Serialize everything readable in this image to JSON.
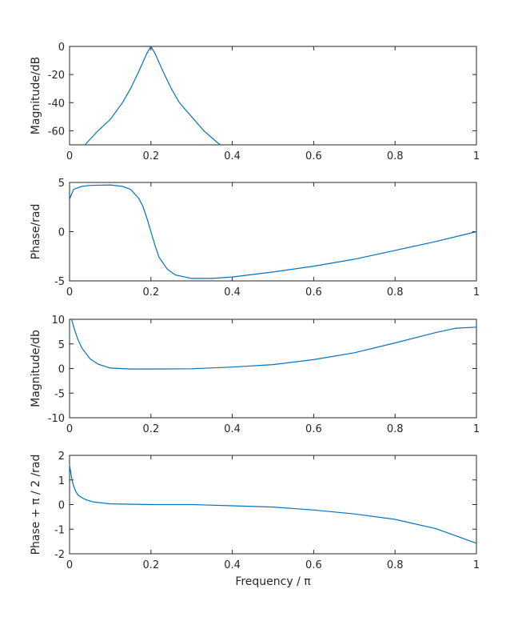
{
  "chart_data": [
    {
      "type": "line",
      "ylabel": "Magnitude/dB",
      "xlim": [
        0,
        1
      ],
      "ylim": [
        -70,
        0
      ],
      "xticks": [
        "0",
        "0.2",
        "0.4",
        "0.6",
        "0.8",
        "1"
      ],
      "yticks": [
        "-60",
        "-40",
        "-20",
        "0"
      ],
      "ytick_values": [
        -60,
        -40,
        -20,
        0
      ],
      "grid": false,
      "x": [
        0.038,
        0.07,
        0.1,
        0.13,
        0.15,
        0.17,
        0.19,
        0.2,
        0.21,
        0.23,
        0.25,
        0.27,
        0.3,
        0.33,
        0.37
      ],
      "y": [
        -70,
        -60,
        -52,
        -40,
        -30,
        -18,
        -5,
        0,
        -5,
        -18,
        -30,
        -40,
        -50,
        -60,
        -70
      ]
    },
    {
      "type": "line",
      "ylabel": "Phase/rad",
      "xlim": [
        0,
        1
      ],
      "ylim": [
        -5,
        5
      ],
      "xticks": [
        "0",
        "0.2",
        "0.4",
        "0.6",
        "0.8",
        "1"
      ],
      "yticks": [
        "-5",
        "0",
        "5"
      ],
      "ytick_values": [
        -5,
        0,
        5
      ],
      "grid": false,
      "x": [
        0,
        0.01,
        0.03,
        0.05,
        0.1,
        0.13,
        0.15,
        0.17,
        0.18,
        0.19,
        0.2,
        0.21,
        0.22,
        0.24,
        0.26,
        0.3,
        0.35,
        0.4,
        0.5,
        0.6,
        0.7,
        0.8,
        0.9,
        1.0
      ],
      "y": [
        3.3,
        4.3,
        4.6,
        4.7,
        4.75,
        4.6,
        4.3,
        3.4,
        2.6,
        1.4,
        0,
        -1.4,
        -2.6,
        -3.8,
        -4.4,
        -4.75,
        -4.75,
        -4.6,
        -4.1,
        -3.5,
        -2.8,
        -1.9,
        -1.0,
        0
      ]
    },
    {
      "type": "line",
      "ylabel": "Magnitude/db",
      "xlim": [
        0,
        1
      ],
      "ylim": [
        -10,
        10
      ],
      "xticks": [
        "0",
        "0.2",
        "0.4",
        "0.6",
        "0.8",
        "1"
      ],
      "yticks": [
        "-10",
        "-5",
        "0",
        "5",
        "10"
      ],
      "ytick_values": [
        -10,
        -5,
        0,
        5,
        10
      ],
      "grid": false,
      "x": [
        0.005,
        0.01,
        0.02,
        0.03,
        0.05,
        0.07,
        0.1,
        0.15,
        0.2,
        0.3,
        0.4,
        0.5,
        0.6,
        0.7,
        0.8,
        0.9,
        0.95,
        1.0
      ],
      "y": [
        10,
        8.5,
        6,
        4.2,
        2,
        0.9,
        0.1,
        -0.1,
        -0.1,
        -0.05,
        0.3,
        0.8,
        1.8,
        3.2,
        5.2,
        7.3,
        8.2,
        8.4
      ]
    },
    {
      "type": "line",
      "ylabel": "Phase + π / 2 /rad",
      "xlabel": "Frequency / π",
      "xlim": [
        0,
        1
      ],
      "ylim": [
        -2,
        2
      ],
      "xticks": [
        "0",
        "0.2",
        "0.4",
        "0.6",
        "0.8",
        "1"
      ],
      "yticks": [
        "-2",
        "-1",
        "0",
        "1",
        "2"
      ],
      "ytick_values": [
        -2,
        -1,
        0,
        1,
        2
      ],
      "grid": false,
      "x": [
        0,
        0.003,
        0.006,
        0.01,
        0.015,
        0.02,
        0.03,
        0.04,
        0.06,
        0.1,
        0.2,
        0.3,
        0.4,
        0.5,
        0.6,
        0.7,
        0.8,
        0.9,
        1.0
      ],
      "y": [
        1.6,
        1.3,
        1.0,
        0.75,
        0.55,
        0.4,
        0.28,
        0.2,
        0.1,
        0.03,
        0,
        0,
        -0.05,
        -0.1,
        -0.22,
        -0.38,
        -0.6,
        -0.98,
        -1.57
      ]
    }
  ],
  "colors": {
    "line": "#0072bd",
    "axes": "#262626"
  }
}
